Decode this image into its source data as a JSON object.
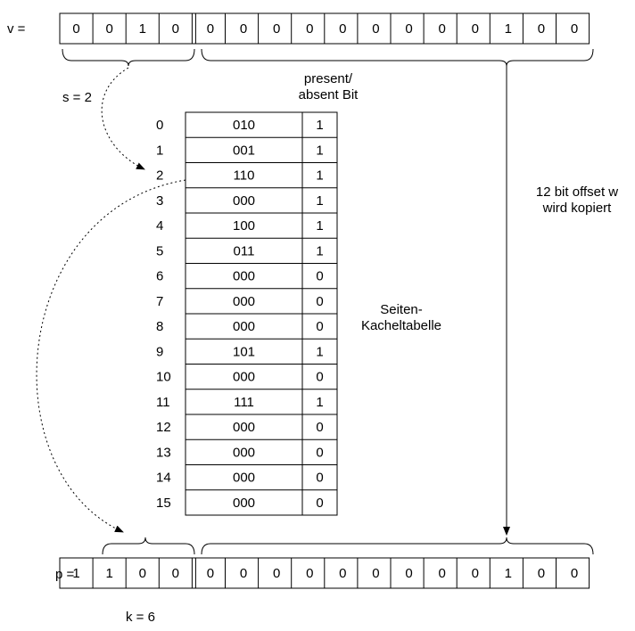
{
  "v_label": "v =",
  "p_label": "p =",
  "s_label": "s = 2",
  "k_label": "k = 6",
  "present_label_line1": "present/",
  "present_label_line2": "absent Bit",
  "offset_label_line1": "12 bit offset w",
  "offset_label_line2": "wird kopiert",
  "table_label_line1": "Seiten-",
  "table_label_line2": "Kacheltabelle",
  "v_bits": [
    "0",
    "0",
    "1",
    "0",
    "0",
    "0",
    "0",
    "0",
    "0",
    "0",
    "0",
    "0",
    "0",
    "1",
    "0",
    "0"
  ],
  "p_bits": [
    "1",
    "1",
    "0",
    "0",
    "0",
    "0",
    "0",
    "0",
    "0",
    "0",
    "0",
    "0",
    "0",
    "1",
    "0",
    "0"
  ],
  "table": [
    {
      "index": "0",
      "frame": "010",
      "present": "1"
    },
    {
      "index": "1",
      "frame": "001",
      "present": "1"
    },
    {
      "index": "2",
      "frame": "110",
      "present": "1"
    },
    {
      "index": "3",
      "frame": "000",
      "present": "1"
    },
    {
      "index": "4",
      "frame": "100",
      "present": "1"
    },
    {
      "index": "5",
      "frame": "011",
      "present": "1"
    },
    {
      "index": "6",
      "frame": "000",
      "present": "0"
    },
    {
      "index": "7",
      "frame": "000",
      "present": "0"
    },
    {
      "index": "8",
      "frame": "000",
      "present": "0"
    },
    {
      "index": "9",
      "frame": "101",
      "present": "1"
    },
    {
      "index": "10",
      "frame": "000",
      "present": "0"
    },
    {
      "index": "11",
      "frame": "111",
      "present": "1"
    },
    {
      "index": "12",
      "frame": "000",
      "present": "0"
    },
    {
      "index": "13",
      "frame": "000",
      "present": "0"
    },
    {
      "index": "14",
      "frame": "000",
      "present": "0"
    },
    {
      "index": "15",
      "frame": "000",
      "present": "0"
    }
  ]
}
